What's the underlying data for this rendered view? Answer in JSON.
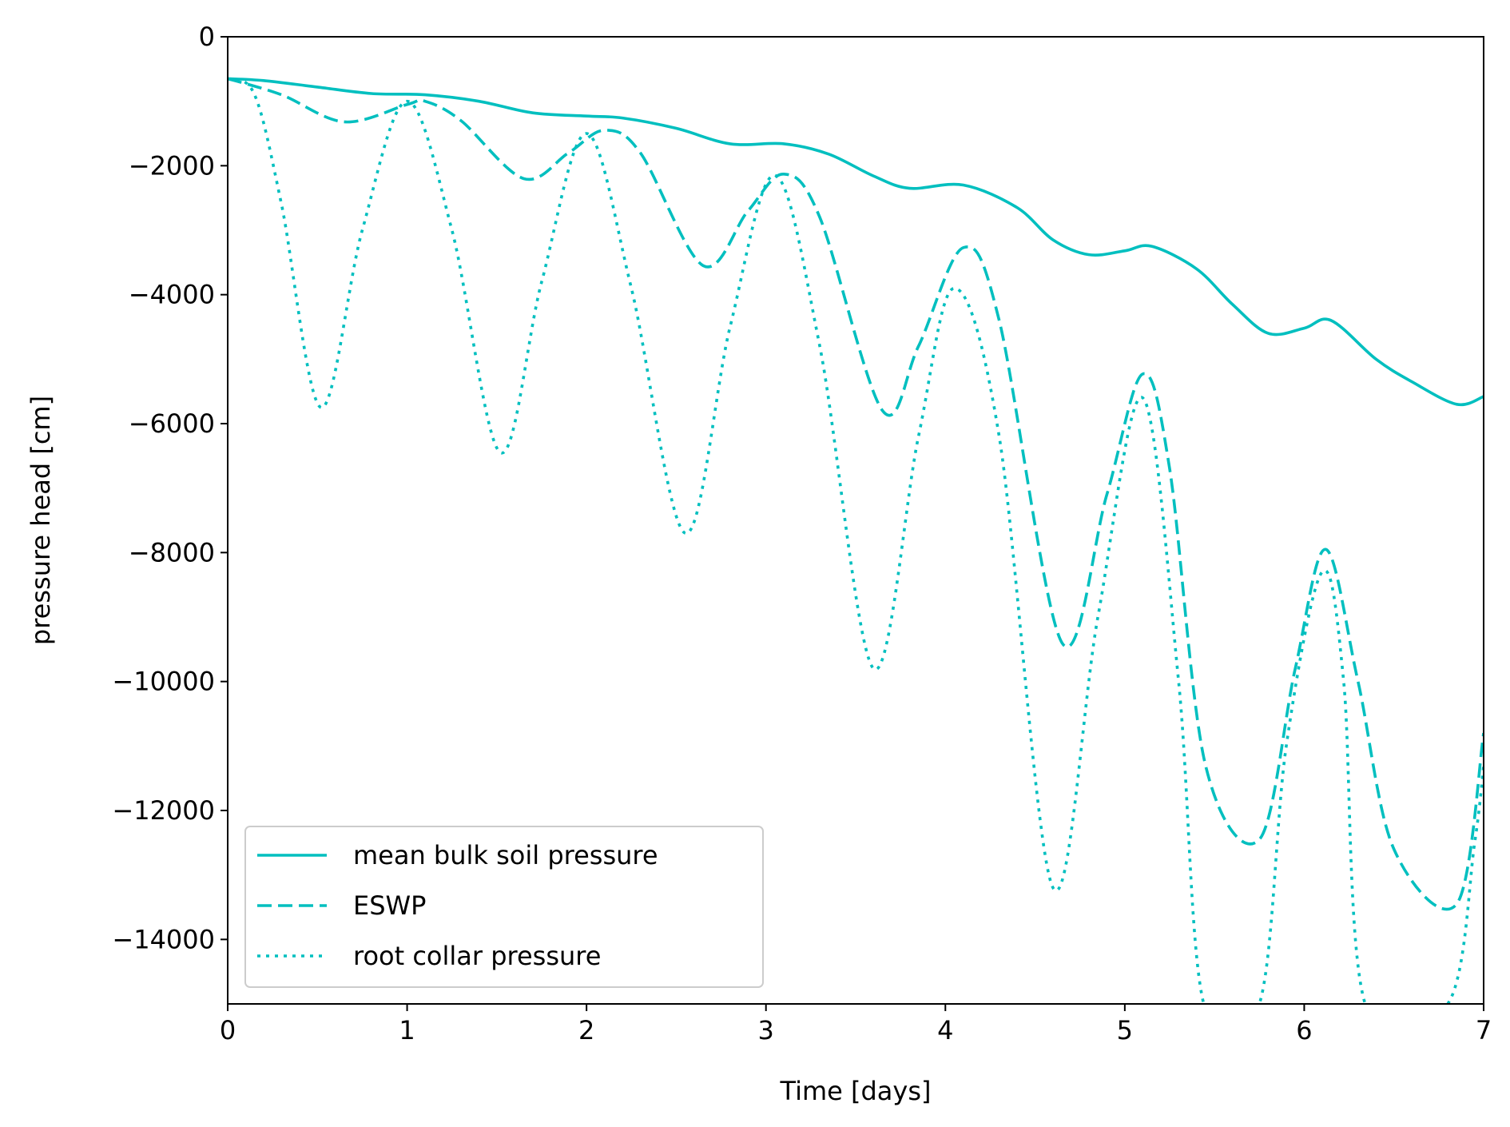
{
  "chart_data": {
    "type": "line",
    "xlabel": "Time [days]",
    "ylabel": "pressure head [cm]",
    "xlim": [
      0,
      7
    ],
    "ylim": [
      -15000,
      0
    ],
    "x_ticks": [
      0,
      1,
      2,
      3,
      4,
      5,
      6,
      7
    ],
    "x_tick_labels": [
      "0",
      "1",
      "2",
      "3",
      "4",
      "5",
      "6",
      "7"
    ],
    "y_ticks": [
      0,
      -2000,
      -4000,
      -6000,
      -8000,
      -10000,
      -12000,
      -14000
    ],
    "y_tick_labels": [
      "0",
      "−2000",
      "−4000",
      "−6000",
      "−8000",
      "−10000",
      "−12000",
      "−14000"
    ],
    "grid": false,
    "legend_position": "lower-left",
    "series_color": "#00BFBF",
    "series": [
      {
        "name": "mean bulk soil pressure",
        "style": "solid",
        "x": [
          0,
          0.2,
          0.5,
          0.8,
          1.1,
          1.4,
          1.7,
          2.0,
          2.2,
          2.5,
          2.8,
          3.1,
          3.35,
          3.6,
          3.8,
          4.1,
          4.4,
          4.6,
          4.8,
          5.0,
          5.15,
          5.4,
          5.6,
          5.8,
          6.0,
          6.15,
          6.4,
          6.6,
          6.85,
          7.0
        ],
        "y": [
          -650,
          -680,
          -780,
          -880,
          -900,
          -1000,
          -1180,
          -1230,
          -1260,
          -1420,
          -1660,
          -1660,
          -1820,
          -2160,
          -2350,
          -2300,
          -2650,
          -3150,
          -3380,
          -3320,
          -3250,
          -3600,
          -4150,
          -4600,
          -4520,
          -4400,
          -5000,
          -5350,
          -5700,
          -5580
        ]
      },
      {
        "name": "ESWP",
        "style": "dashed",
        "x": [
          0,
          0.3,
          0.65,
          1.0,
          1.1,
          1.3,
          1.65,
          1.9,
          2.1,
          2.3,
          2.65,
          2.9,
          3.1,
          3.3,
          3.65,
          3.85,
          4.1,
          4.3,
          4.65,
          4.9,
          5.1,
          5.25,
          5.45,
          5.75,
          5.95,
          6.12,
          6.3,
          6.5,
          6.85,
          7.0
        ],
        "y": [
          -650,
          -900,
          -1320,
          -1050,
          -1000,
          -1300,
          -2200,
          -1800,
          -1450,
          -1800,
          -3550,
          -2700,
          -2130,
          -2800,
          -5800,
          -4800,
          -3270,
          -4400,
          -9400,
          -7100,
          -5230,
          -6700,
          -11300,
          -12450,
          -9800,
          -7950,
          -10000,
          -12600,
          -13450,
          -10800
        ]
      },
      {
        "name": "root collar pressure",
        "style": "dotted",
        "x": [
          0,
          0.15,
          0.3,
          0.52,
          0.75,
          1.0,
          1.25,
          1.52,
          1.75,
          2.0,
          2.25,
          2.55,
          2.8,
          3.05,
          3.3,
          3.6,
          3.85,
          4.05,
          4.3,
          4.6,
          4.85,
          5.1,
          5.3,
          5.44,
          5.75,
          5.9,
          6.1,
          6.22,
          6.34,
          6.8,
          6.95,
          7.0
        ],
        "y": [
          -650,
          -900,
          -2600,
          -5750,
          -3000,
          -1000,
          -3000,
          -6450,
          -3800,
          -1500,
          -3900,
          -7700,
          -4500,
          -2150,
          -4800,
          -9800,
          -6200,
          -3900,
          -6200,
          -13200,
          -9000,
          -5600,
          -10000,
          -15000,
          -15000,
          -11000,
          -8300,
          -10000,
          -15000,
          -15000,
          -12500,
          -11300
        ]
      }
    ]
  }
}
